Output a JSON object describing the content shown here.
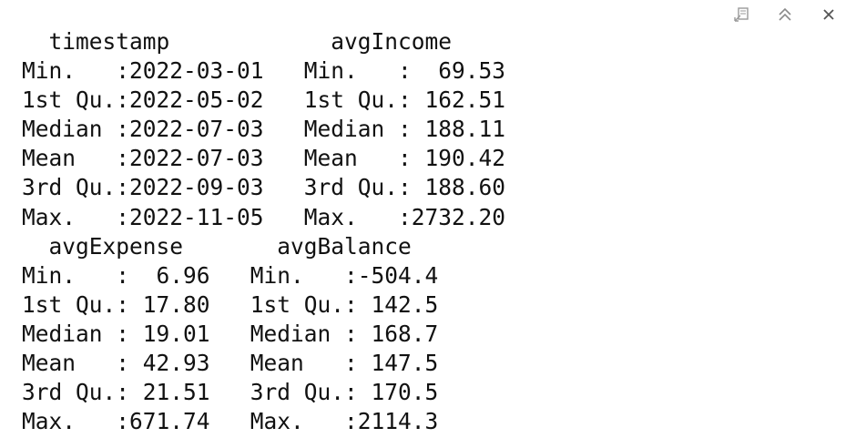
{
  "toolbar": {
    "icons": [
      "popout-icon",
      "collapse-icon",
      "close-icon"
    ]
  },
  "output": {
    "lines": [
      "  timestamp            avgIncome     ",
      "Min.   :2022-03-01   Min.   :  69.53  ",
      "1st Qu.:2022-05-02   1st Qu.: 162.51  ",
      "Median :2022-07-03   Median : 188.11  ",
      "Mean   :2022-07-03   Mean   : 190.42  ",
      "3rd Qu.:2022-09-03   3rd Qu.: 188.60  ",
      "Max.   :2022-11-05   Max.   :2732.20  ",
      "  avgExpense       avgBalance    ",
      "Min.   :  6.96   Min.   :-504.4  ",
      "1st Qu.: 17.80   1st Qu.: 142.5  ",
      "Median : 19.01   Median : 168.7  ",
      "Mean   : 42.93   Mean   : 147.5  ",
      "3rd Qu.: 21.51   3rd Qu.: 170.5  ",
      "Max.   :671.74   Max.   :2114.3  "
    ]
  }
}
